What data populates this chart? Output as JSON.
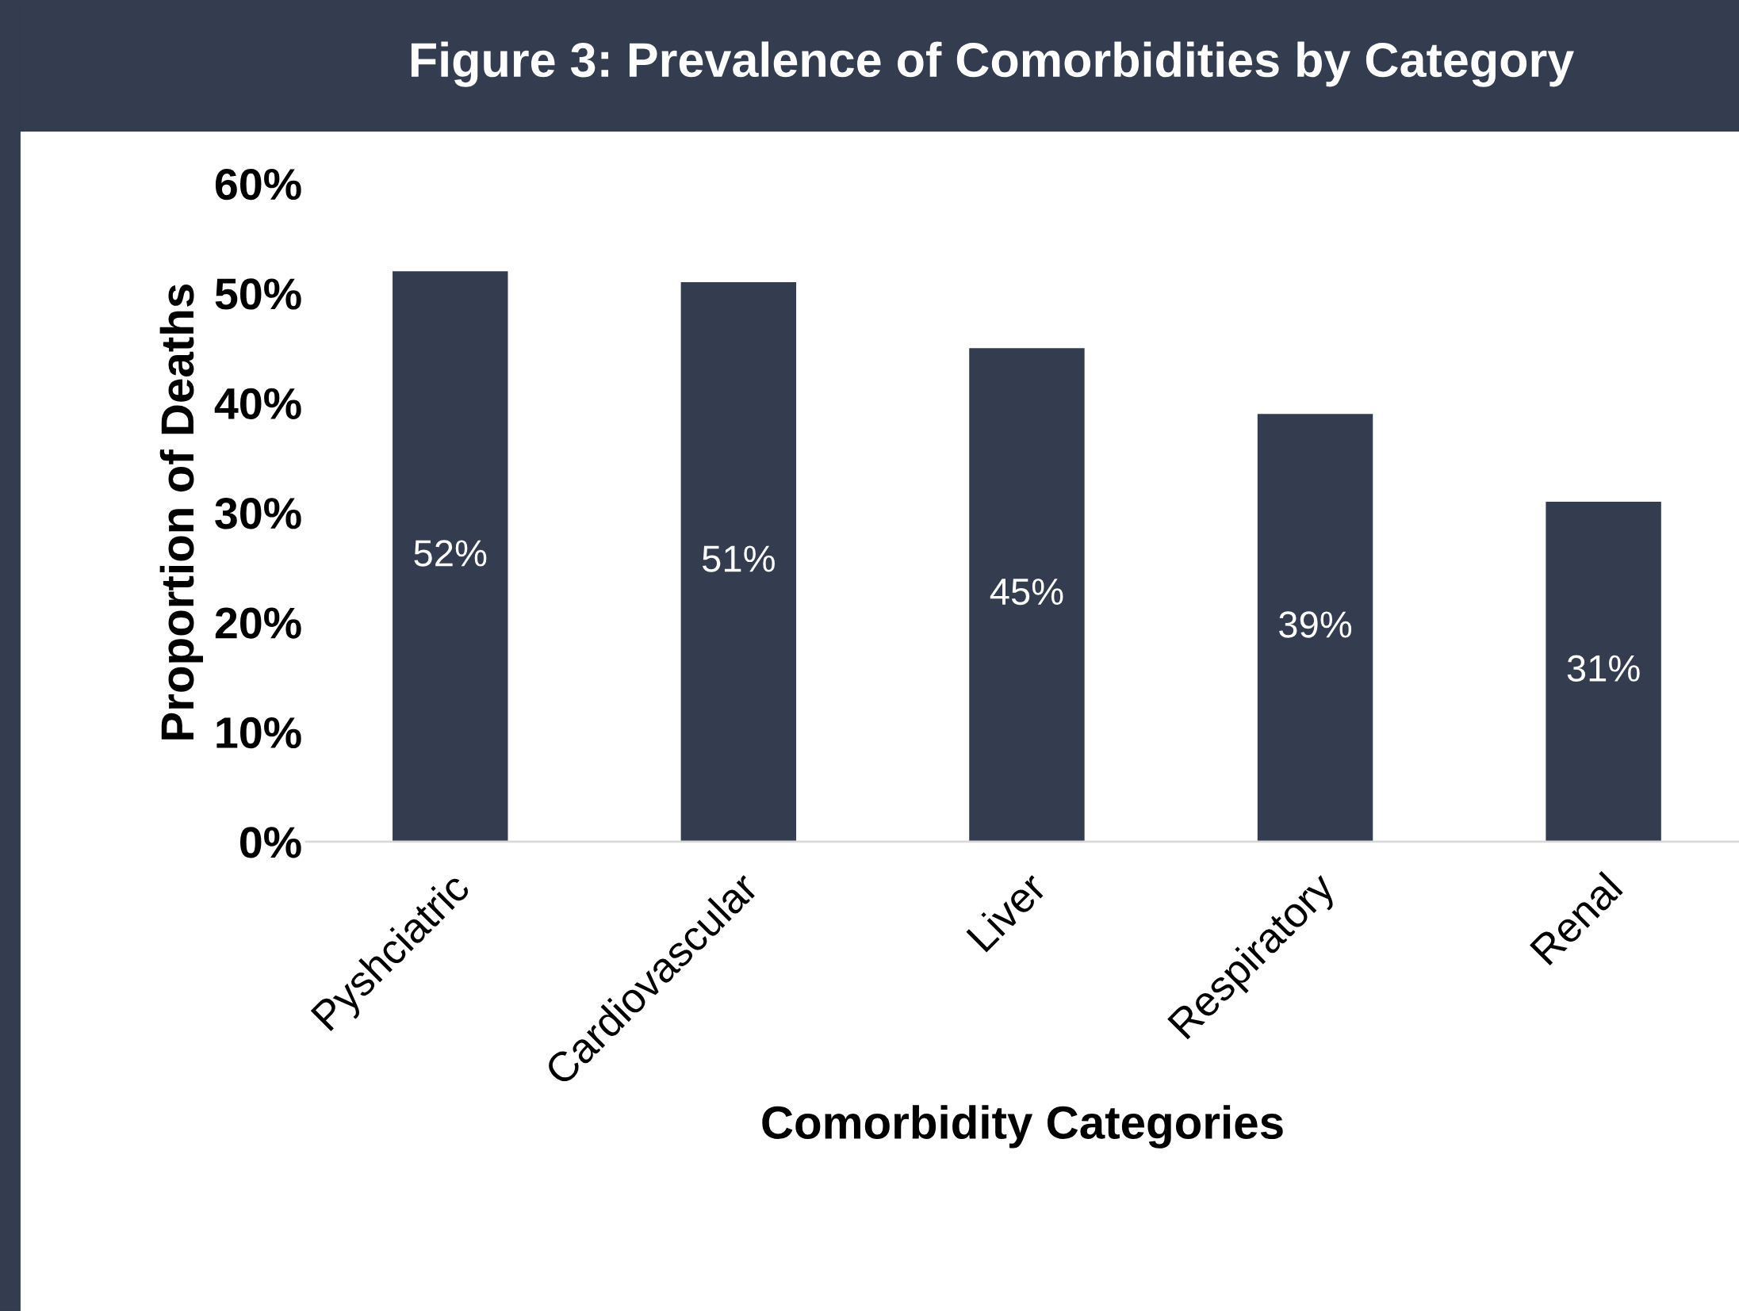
{
  "chart_data": {
    "type": "bar",
    "title": "Figure 3: Prevalence of Comorbidities by Category",
    "xlabel": "Comorbidity Categories",
    "ylabel": "Proportion of Deaths",
    "categories": [
      "Pyshciatric",
      "Cardiovascular",
      "Liver",
      "Respiratory",
      "Renal"
    ],
    "values": [
      52,
      51,
      45,
      39,
      31
    ],
    "value_labels": [
      "52%",
      "51%",
      "45%",
      "39%",
      "31%"
    ],
    "color": "#333d4f",
    "ylim": [
      0,
      60
    ],
    "yticks": [
      {
        "value": 0,
        "label": "0%"
      },
      {
        "value": 10,
        "label": "10%"
      },
      {
        "value": 20,
        "label": "20%"
      },
      {
        "value": 30,
        "label": "30%"
      },
      {
        "value": 40,
        "label": "40%"
      },
      {
        "value": 50,
        "label": "50%"
      },
      {
        "value": 60,
        "label": "60%"
      }
    ],
    "grid": false,
    "legend": false
  }
}
